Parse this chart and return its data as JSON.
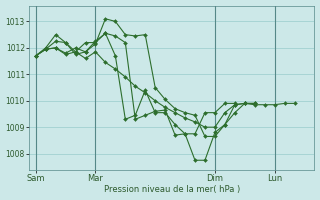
{
  "xlabel": "Pression niveau de la mer( hPa )",
  "bg_color": "#cce8e8",
  "grid_color": "#99cccc",
  "line_color": "#2d6e2d",
  "marker_color": "#2d6e2d",
  "ylim": [
    1007.4,
    1013.6
  ],
  "yticks": [
    1008,
    1009,
    1010,
    1011,
    1012,
    1013
  ],
  "xtick_labels": [
    "Sam",
    "Mar",
    "Dim",
    "Lun"
  ],
  "xtick_positions": [
    0,
    36,
    108,
    144
  ],
  "vline_positions": [
    0,
    36,
    108,
    144
  ],
  "xlim": [
    -4,
    168
  ],
  "series": [
    [
      0,
      1011.7,
      6,
      1011.95,
      12,
      1012.0,
      18,
      1011.75,
      24,
      1011.85,
      30,
      1011.6,
      36,
      1011.85,
      42,
      1011.45,
      48,
      1011.2,
      54,
      1010.9,
      60,
      1010.55,
      66,
      1010.3,
      72,
      1010.0,
      78,
      1009.75,
      84,
      1009.55,
      90,
      1009.35,
      96,
      1009.2,
      102,
      1009.0,
      108,
      1009.0,
      114,
      1009.55,
      120,
      1009.85,
      126,
      1009.9,
      132,
      1009.85,
      138,
      1009.85,
      144,
      1009.85,
      150,
      1009.9,
      156,
      1009.9
    ],
    [
      0,
      1011.7,
      6,
      1012.0,
      12,
      1012.5,
      18,
      1012.2,
      24,
      1011.75,
      30,
      1011.85,
      36,
      1012.15,
      42,
      1013.1,
      48,
      1013.0,
      54,
      1012.5,
      60,
      1012.45,
      66,
      1012.5,
      72,
      1010.5,
      78,
      1010.05,
      84,
      1009.7,
      90,
      1009.55,
      96,
      1009.45,
      102,
      1008.65,
      108,
      1008.65,
      114,
      1009.1,
      120,
      1009.85,
      126,
      1009.9,
      132,
      1009.9
    ],
    [
      0,
      1011.7,
      6,
      1011.95,
      12,
      1012.25,
      18,
      1012.2,
      24,
      1011.85,
      30,
      1012.2,
      36,
      1012.2,
      42,
      1012.55,
      48,
      1012.45,
      54,
      1012.2,
      60,
      1009.3,
      66,
      1009.45,
      72,
      1009.6,
      78,
      1009.65,
      84,
      1008.7,
      90,
      1008.75,
      96,
      1007.75,
      102,
      1007.75,
      108,
      1008.8,
      114,
      1009.1,
      120,
      1009.55,
      126,
      1009.9,
      132,
      1009.9
    ],
    [
      0,
      1011.7,
      6,
      1011.95,
      12,
      1012.0,
      18,
      1011.8,
      24,
      1012.0,
      30,
      1011.85,
      36,
      1012.25,
      42,
      1012.55,
      48,
      1011.7,
      54,
      1009.3,
      60,
      1009.45,
      66,
      1010.4,
      72,
      1009.55,
      78,
      1009.55,
      84,
      1009.1,
      90,
      1008.75,
      96,
      1008.75,
      102,
      1009.55,
      108,
      1009.55,
      114,
      1009.9,
      120,
      1009.9
    ]
  ]
}
